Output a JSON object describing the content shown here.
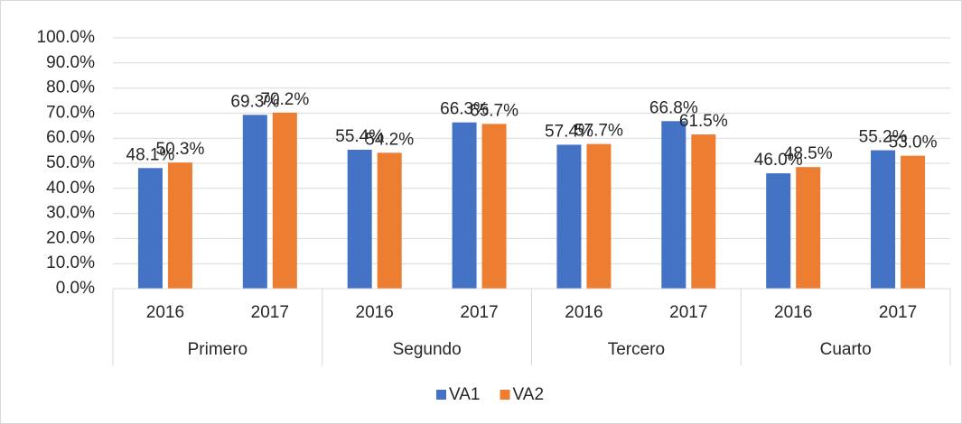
{
  "chart_data": {
    "type": "bar",
    "categories": [
      "2016",
      "2017",
      "2016",
      "2017",
      "2016",
      "2017",
      "2016",
      "2017"
    ],
    "groups": [
      "Primero",
      "Segundo",
      "Tercero",
      "Cuarto"
    ],
    "series": [
      {
        "name": "VA1",
        "color": "#4472c4",
        "values": [
          48.1,
          69.3,
          55.4,
          66.3,
          57.4,
          66.8,
          46.0,
          55.2
        ],
        "value_labels": [
          "48.1%",
          "69.3%",
          "55.4%",
          "66.3%",
          "57.4%",
          "66.8%",
          "46.0%",
          "55.2%"
        ]
      },
      {
        "name": "VA2",
        "color": "#ed7d31",
        "values": [
          50.3,
          70.2,
          54.2,
          65.7,
          57.7,
          61.5,
          48.5,
          53.0
        ],
        "value_labels": [
          "50.3%",
          "70.2%",
          "54.2%",
          "65.7%",
          "57.7%",
          "61.5%",
          "48.5%",
          "53.0%"
        ]
      }
    ],
    "ylim": [
      0,
      100
    ],
    "yticks": [
      {
        "value": 0,
        "label": "0.0%"
      },
      {
        "value": 10,
        "label": "10.0%"
      },
      {
        "value": 20,
        "label": "20.0%"
      },
      {
        "value": 30,
        "label": "30.0%"
      },
      {
        "value": 40,
        "label": "40.0%"
      },
      {
        "value": 50,
        "label": "50.0%"
      },
      {
        "value": 60,
        "label": "60.0%"
      },
      {
        "value": 70,
        "label": "70.0%"
      },
      {
        "value": 80,
        "label": "80.0%"
      },
      {
        "value": 90,
        "label": "90.0%"
      },
      {
        "value": 100,
        "label": "100.0%"
      }
    ],
    "grid": true,
    "legend": "bottom"
  }
}
